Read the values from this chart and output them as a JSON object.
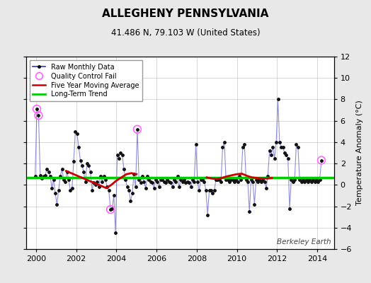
{
  "title": "ALLEGHENY PENNSYLVANIA",
  "subtitle": "41.486 N, 79.103 W (United States)",
  "ylabel": "Temperature Anomaly (°C)",
  "watermark": "Berkeley Earth",
  "xlim": [
    1999.5,
    2014.83
  ],
  "ylim": [
    -6,
    12
  ],
  "yticks": [
    -6,
    -4,
    -2,
    0,
    2,
    4,
    6,
    8,
    10,
    12
  ],
  "xticks": [
    2000,
    2002,
    2004,
    2006,
    2008,
    2010,
    2012,
    2014
  ],
  "bg_color": "#e8e8e8",
  "plot_bg_color": "#ffffff",
  "line_color": "#3333bb",
  "line_alpha": 0.55,
  "marker_color": "#111111",
  "qc_color": "#ff66ff",
  "ma_color": "#cc0000",
  "trend_color": "#00cc00",
  "trend_value": 0.7,
  "monthly_data": [
    [
      1999.958,
      0.8
    ],
    [
      2000.042,
      7.1
    ],
    [
      2000.125,
      6.5
    ],
    [
      2000.208,
      0.9
    ],
    [
      2000.292,
      0.6
    ],
    [
      2000.375,
      0.8
    ],
    [
      2000.458,
      0.9
    ],
    [
      2000.542,
      1.5
    ],
    [
      2000.625,
      1.2
    ],
    [
      2000.708,
      0.8
    ],
    [
      2000.792,
      -0.3
    ],
    [
      2000.875,
      0.5
    ],
    [
      2000.958,
      -0.8
    ],
    [
      2001.042,
      -1.8
    ],
    [
      2001.125,
      -0.5
    ],
    [
      2001.208,
      0.8
    ],
    [
      2001.292,
      1.5
    ],
    [
      2001.375,
      0.5
    ],
    [
      2001.458,
      0.3
    ],
    [
      2001.542,
      1.2
    ],
    [
      2001.625,
      0.5
    ],
    [
      2001.708,
      -0.5
    ],
    [
      2001.792,
      -0.3
    ],
    [
      2001.875,
      2.2
    ],
    [
      2001.958,
      5.0
    ],
    [
      2002.042,
      4.8
    ],
    [
      2002.125,
      3.5
    ],
    [
      2002.208,
      2.3
    ],
    [
      2002.292,
      1.8
    ],
    [
      2002.375,
      1.2
    ],
    [
      2002.458,
      0.3
    ],
    [
      2002.542,
      2.0
    ],
    [
      2002.625,
      1.8
    ],
    [
      2002.708,
      1.2
    ],
    [
      2002.792,
      -0.5
    ],
    [
      2002.875,
      0.2
    ],
    [
      2002.958,
      0.0
    ],
    [
      2003.042,
      0.3
    ],
    [
      2003.125,
      -0.2
    ],
    [
      2003.208,
      0.8
    ],
    [
      2003.292,
      0.3
    ],
    [
      2003.375,
      0.8
    ],
    [
      2003.458,
      0.5
    ],
    [
      2003.542,
      -0.2
    ],
    [
      2003.625,
      -0.5
    ],
    [
      2003.708,
      -2.3
    ],
    [
      2003.792,
      -2.2
    ],
    [
      2003.875,
      -1.0
    ],
    [
      2003.958,
      -4.5
    ],
    [
      2004.042,
      2.8
    ],
    [
      2004.125,
      2.5
    ],
    [
      2004.208,
      3.0
    ],
    [
      2004.292,
      2.8
    ],
    [
      2004.375,
      1.5
    ],
    [
      2004.458,
      0.5
    ],
    [
      2004.542,
      -0.2
    ],
    [
      2004.625,
      -0.5
    ],
    [
      2004.708,
      -1.5
    ],
    [
      2004.792,
      -0.8
    ],
    [
      2004.875,
      1.0
    ],
    [
      2004.958,
      -0.2
    ],
    [
      2005.042,
      5.2
    ],
    [
      2005.125,
      0.5
    ],
    [
      2005.208,
      0.2
    ],
    [
      2005.292,
      0.8
    ],
    [
      2005.375,
      0.3
    ],
    [
      2005.458,
      -0.3
    ],
    [
      2005.542,
      0.8
    ],
    [
      2005.625,
      0.5
    ],
    [
      2005.708,
      0.3
    ],
    [
      2005.792,
      0.2
    ],
    [
      2005.875,
      -0.3
    ],
    [
      2005.958,
      0.5
    ],
    [
      2006.042,
      0.3
    ],
    [
      2006.125,
      -0.2
    ],
    [
      2006.208,
      0.5
    ],
    [
      2006.292,
      0.5
    ],
    [
      2006.375,
      0.3
    ],
    [
      2006.458,
      0.2
    ],
    [
      2006.542,
      0.5
    ],
    [
      2006.625,
      0.3
    ],
    [
      2006.708,
      0.2
    ],
    [
      2006.792,
      -0.2
    ],
    [
      2006.875,
      0.5
    ],
    [
      2006.958,
      0.3
    ],
    [
      2007.042,
      0.8
    ],
    [
      2007.125,
      -0.2
    ],
    [
      2007.208,
      0.5
    ],
    [
      2007.292,
      0.3
    ],
    [
      2007.375,
      0.5
    ],
    [
      2007.458,
      0.2
    ],
    [
      2007.542,
      0.3
    ],
    [
      2007.625,
      0.2
    ],
    [
      2007.708,
      -0.2
    ],
    [
      2007.792,
      0.5
    ],
    [
      2007.875,
      0.3
    ],
    [
      2007.958,
      3.8
    ],
    [
      2008.042,
      0.3
    ],
    [
      2008.125,
      -0.5
    ],
    [
      2008.208,
      0.5
    ],
    [
      2008.292,
      0.5
    ],
    [
      2008.375,
      0.3
    ],
    [
      2008.458,
      -0.5
    ],
    [
      2008.542,
      -2.8
    ],
    [
      2008.625,
      -0.5
    ],
    [
      2008.708,
      -0.5
    ],
    [
      2008.792,
      -0.8
    ],
    [
      2008.875,
      -0.5
    ],
    [
      2008.958,
      0.5
    ],
    [
      2009.042,
      0.5
    ],
    [
      2009.125,
      0.5
    ],
    [
      2009.208,
      0.3
    ],
    [
      2009.292,
      3.5
    ],
    [
      2009.375,
      4.0
    ],
    [
      2009.458,
      0.5
    ],
    [
      2009.542,
      0.5
    ],
    [
      2009.625,
      0.3
    ],
    [
      2009.708,
      0.5
    ],
    [
      2009.792,
      0.5
    ],
    [
      2009.875,
      0.3
    ],
    [
      2009.958,
      0.5
    ],
    [
      2010.042,
      0.3
    ],
    [
      2010.125,
      0.8
    ],
    [
      2010.208,
      0.5
    ],
    [
      2010.292,
      3.5
    ],
    [
      2010.375,
      3.8
    ],
    [
      2010.458,
      0.5
    ],
    [
      2010.542,
      0.3
    ],
    [
      2010.625,
      -2.5
    ],
    [
      2010.708,
      0.5
    ],
    [
      2010.792,
      0.3
    ],
    [
      2010.875,
      -1.8
    ],
    [
      2010.958,
      0.5
    ],
    [
      2011.042,
      0.3
    ],
    [
      2011.125,
      0.5
    ],
    [
      2011.208,
      0.3
    ],
    [
      2011.292,
      0.5
    ],
    [
      2011.375,
      0.3
    ],
    [
      2011.458,
      -0.3
    ],
    [
      2011.542,
      0.8
    ],
    [
      2011.625,
      3.2
    ],
    [
      2011.708,
      2.8
    ],
    [
      2011.792,
      3.5
    ],
    [
      2011.875,
      2.5
    ],
    [
      2011.958,
      4.0
    ],
    [
      2012.042,
      8.0
    ],
    [
      2012.125,
      4.0
    ],
    [
      2012.208,
      3.5
    ],
    [
      2012.292,
      3.5
    ],
    [
      2012.375,
      3.0
    ],
    [
      2012.458,
      2.8
    ],
    [
      2012.542,
      2.5
    ],
    [
      2012.625,
      -2.2
    ],
    [
      2012.708,
      0.5
    ],
    [
      2012.792,
      0.3
    ],
    [
      2012.875,
      0.5
    ],
    [
      2012.958,
      3.8
    ],
    [
      2013.042,
      3.5
    ],
    [
      2013.125,
      0.5
    ],
    [
      2013.208,
      0.3
    ],
    [
      2013.292,
      0.5
    ],
    [
      2013.375,
      0.3
    ],
    [
      2013.458,
      0.5
    ],
    [
      2013.542,
      0.3
    ],
    [
      2013.625,
      0.5
    ],
    [
      2013.708,
      0.3
    ],
    [
      2013.792,
      0.5
    ],
    [
      2013.875,
      0.3
    ],
    [
      2013.958,
      0.5
    ],
    [
      2014.042,
      0.3
    ],
    [
      2014.125,
      0.5
    ],
    [
      2014.208,
      2.3
    ]
  ],
  "qc_fail_points": [
    [
      2000.042,
      7.1
    ],
    [
      2000.125,
      6.5
    ],
    [
      2003.708,
      -2.3
    ],
    [
      2005.042,
      5.2
    ],
    [
      2014.208,
      2.3
    ]
  ],
  "ma_seg1": [
    [
      2001.5,
      1.3
    ],
    [
      2001.75,
      1.1
    ],
    [
      2002.0,
      0.9
    ],
    [
      2002.25,
      0.7
    ],
    [
      2002.5,
      0.5
    ],
    [
      2002.75,
      0.3
    ],
    [
      2003.0,
      0.1
    ],
    [
      2003.25,
      -0.1
    ],
    [
      2003.5,
      -0.3
    ],
    [
      2003.75,
      0.0
    ],
    [
      2004.0,
      0.4
    ],
    [
      2004.25,
      0.7
    ],
    [
      2004.5,
      1.0
    ],
    [
      2004.75,
      1.1
    ],
    [
      2005.0,
      1.0
    ]
  ],
  "ma_seg2": [
    [
      2008.5,
      0.7
    ],
    [
      2008.75,
      0.6
    ],
    [
      2009.0,
      0.55
    ],
    [
      2009.25,
      0.65
    ],
    [
      2009.5,
      0.8
    ],
    [
      2009.75,
      0.9
    ],
    [
      2010.0,
      1.0
    ],
    [
      2010.25,
      1.05
    ],
    [
      2010.5,
      0.85
    ],
    [
      2010.75,
      0.7
    ],
    [
      2011.0,
      0.65
    ],
    [
      2011.25,
      0.6
    ],
    [
      2011.5,
      0.6
    ],
    [
      2011.75,
      0.65
    ]
  ]
}
